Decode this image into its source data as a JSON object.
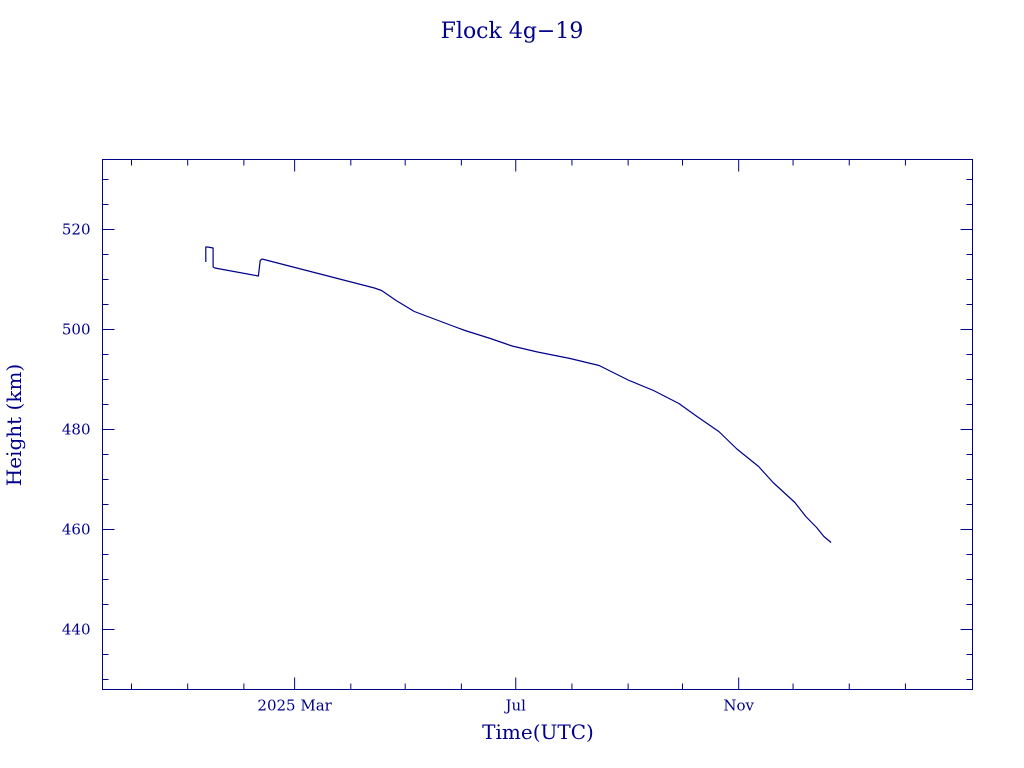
{
  "chart_data": {
    "type": "line",
    "title": "Flock 4g−19",
    "xlabel": "Time(UTC)",
    "ylabel": "Height (km)",
    "x_unit": "date",
    "xlim": [
      "2024-11-15",
      "2026-03-10"
    ],
    "ylim": [
      428,
      534
    ],
    "x_major_ticks": [
      {
        "date": "2025-03-01",
        "label": "2025 Mar"
      },
      {
        "date": "2025-07-01",
        "label": "Jul"
      },
      {
        "date": "2025-11-01",
        "label": "Nov"
      }
    ],
    "x_minor_tick_dates": [
      "2024-12-01",
      "2025-01-01",
      "2025-02-01",
      "2025-04-01",
      "2025-05-01",
      "2025-06-01",
      "2025-08-01",
      "2025-09-01",
      "2025-10-01",
      "2025-12-01",
      "2026-01-01",
      "2026-02-01"
    ],
    "y_major_ticks": [
      440,
      460,
      480,
      500,
      520
    ],
    "y_minor_step": 5,
    "grid": false,
    "line_color": "#00008b",
    "series": [
      {
        "x": [
          "2025-01-11",
          "2025-01-11",
          "2025-01-12",
          "2025-01-15",
          "2025-01-15",
          "2025-01-16",
          "2025-02-09",
          "2025-02-10",
          "2025-02-11",
          "2025-04-14",
          "2025-04-18",
          "2025-04-26",
          "2025-05-06",
          "2025-05-20",
          "2025-05-28",
          "2025-06-03",
          "2025-06-17",
          "2025-06-29",
          "2025-07-13",
          "2025-07-31",
          "2025-08-16",
          "2025-09-01",
          "2025-09-15",
          "2025-09-29",
          "2025-10-09",
          "2025-10-21",
          "2025-10-31",
          "2025-11-12",
          "2025-11-20",
          "2025-12-02",
          "2025-12-08",
          "2025-12-14",
          "2025-12-18",
          "2025-12-22"
        ],
        "y": [
          513.5,
          516.5,
          516.5,
          516.3,
          512.5,
          512.3,
          510.7,
          513.8,
          514.1,
          508.3,
          507.8,
          505.8,
          503.6,
          501.7,
          500.6,
          499.8,
          498.2,
          496.7,
          495.5,
          494.2,
          492.8,
          489.9,
          487.8,
          485.2,
          482.6,
          479.6,
          476.1,
          472.6,
          469.4,
          465.4,
          462.6,
          460.4,
          458.6,
          457.4
        ]
      }
    ]
  }
}
